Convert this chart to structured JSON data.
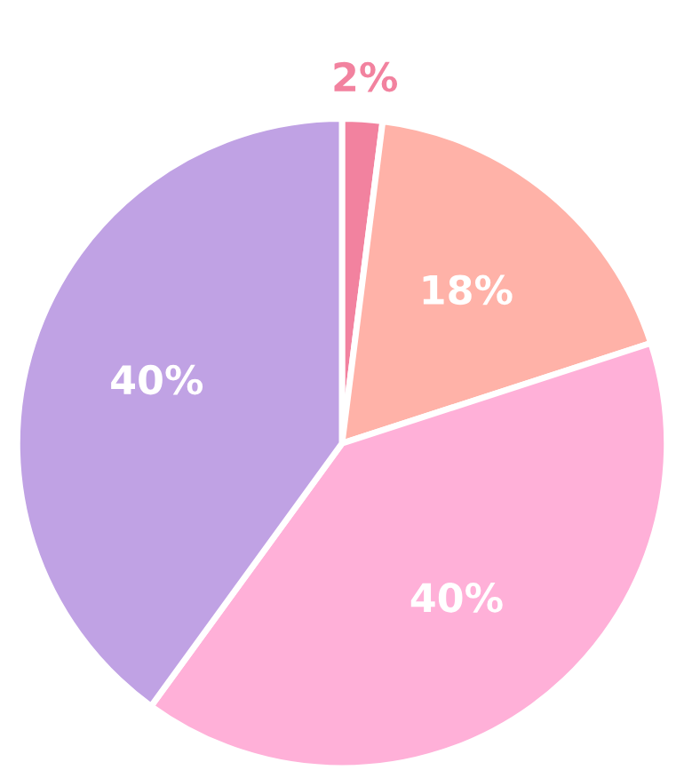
{
  "chart_data": {
    "type": "pie",
    "categories": [
      null,
      null,
      null,
      null
    ],
    "values": [
      2,
      18,
      40,
      40
    ],
    "colors": [
      "#f2829f",
      "#ffb2a8",
      "#ffb0d8",
      "#c0a2e4"
    ],
    "value_labels": [
      "2%",
      "18%",
      "40%",
      "40%"
    ]
  }
}
